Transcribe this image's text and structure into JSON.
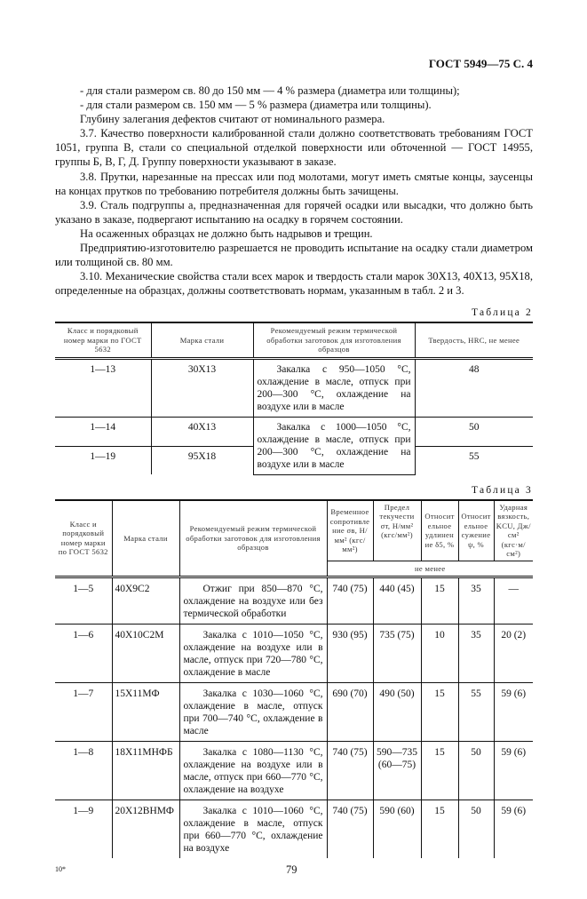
{
  "header": {
    "title": "ГОСТ 5949—75 С. 4"
  },
  "paragraphs": [
    "- для стали размером св. 80 до 150 мм — 4 % размера (диаметра или толщины);",
    "- для стали размером св. 150 мм — 5 % размера (диаметра или толщины).",
    "Глубину залегания дефектов считают от номинального размера.",
    "3.7. Качество поверхности калиброванной стали должно соответствовать требованиям ГОСТ 1051, группа В, стали со специальной отделкой поверхности или обточенной — ГОСТ 14955, группы Б, В, Г, Д. Группу поверхности указывают в заказе.",
    "3.8. Прутки, нарезанные на прессах или под молотами, могут иметь смятые концы, заусенцы на концах прутков по требованию потребителя должны быть зачищены.",
    "3.9. Сталь подгруппы а, предназначенная для горячей осадки или высадки, что должно быть указано в заказе, подвергают испытанию на осадку в горячем состоянии.",
    "На осаженных образцах не должно быть надрывов и трещин.",
    "Предприятию-изготовителю разрешается не проводить испытание на осадку стали диаметром или толщиной св. 80 мм.",
    "3.10. Механические свойства стали всех марок и твердость стали марок 30Х13, 40Х13, 95Х18, определенные на образцах, должны соответствовать нормам, указанным в табл. 2 и 3."
  ],
  "table2": {
    "label": "Таблица 2",
    "headers": [
      "Класс и порядковый номер марки по ГОСТ 5632",
      "Марка стали",
      "Рекомендуемый режим термической обработки заготовок для изготовления образцов",
      "Твердость, HRC, не менее"
    ],
    "rows": [
      {
        "cls": "1—13",
        "grade": "30Х13",
        "regime": "Закалка с 950—1050 °С, охлаждение в масле, отпуск при 200—300 °С, охлаждение на воздухе или в масле",
        "hrc": "48"
      },
      {
        "cls": "1—14",
        "grade": "40Х13",
        "regime": "Закалка с 1000—1050 °С, охлаждение в масле, отпуск при 200—300 °С, охлаждение на воздухе или в масле",
        "hrc": "50"
      },
      {
        "cls": "1—19",
        "grade": "95Х18",
        "regime": "",
        "hrc": "55"
      }
    ]
  },
  "table3": {
    "label": "Таблица 3",
    "headers": [
      "Класс и порядковый номер марки по ГОСТ 5632",
      "Марка стали",
      "Рекомендуемый режим термической обработки заготовок для изготовления образцов",
      "Временное сопротивление σв, Н/мм² (кгс/мм²)",
      "Предел текучести σт, Н/мм² (кгс/мм²)",
      "Относительное удлинение δ5, %",
      "Относительное сужение ψ, %",
      "Ударная вязкость, KCU, Дж/см² (кгс·м/см²)"
    ],
    "subheader": "не менее",
    "rows": [
      {
        "cls": "1—5",
        "grade": "40Х9С2",
        "regime": "Отжиг при 850—870 °С, охлаждение на воздухе или без термической обработки",
        "sb": "740 (75)",
        "st": "440 (45)",
        "d": "15",
        "psi": "35",
        "kcu": "—"
      },
      {
        "cls": "1—6",
        "grade": "40Х10С2М",
        "regime": "Закалка с 1010—1050 °С, охлаждение на воздухе или в масле, отпуск при 720—780 °С, охлаждение в масле",
        "sb": "930 (95)",
        "st": "735 (75)",
        "d": "10",
        "psi": "35",
        "kcu": "20 (2)"
      },
      {
        "cls": "1—7",
        "grade": "15Х11МФ",
        "regime": "Закалка с 1030—1060 °С, охлаждение в масле, отпуск при 700—740 °С, охлаждение в масле",
        "sb": "690 (70)",
        "st": "490 (50)",
        "d": "15",
        "psi": "55",
        "kcu": "59 (6)"
      },
      {
        "cls": "1—8",
        "grade": "18Х11МНФБ",
        "regime": "Закалка с 1080—1130 °С, охлаждение на воздухе или в масле, отпуск при 660—770 °С, охлаждение на воздухе",
        "sb": "740 (75)",
        "st": "590—735 (60—75)",
        "d": "15",
        "psi": "50",
        "kcu": "59 (6)"
      },
      {
        "cls": "1—9",
        "grade": "20Х12ВНМФ",
        "regime": "Закалка с 1010—1060 °С, охлаждение в масле, отпуск при 660—770 °С, охлаждение на воздухе",
        "sb": "740 (75)",
        "st": "590 (60)",
        "d": "15",
        "psi": "50",
        "kcu": "59 (6)"
      }
    ]
  },
  "footer": {
    "mark": "10*",
    "page": "79"
  }
}
